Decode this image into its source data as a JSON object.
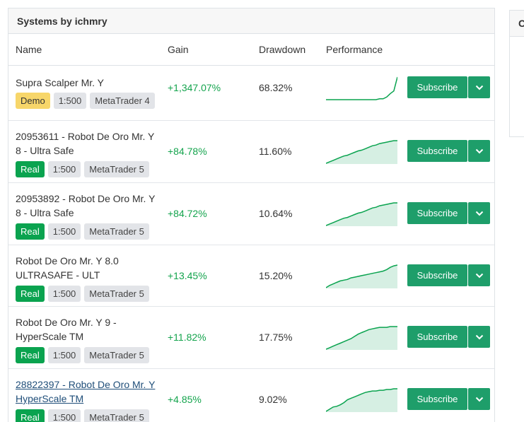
{
  "card": {
    "title": "Systems by ichmry"
  },
  "columns": {
    "name": "Name",
    "gain": "Gain",
    "drawdown": "Drawdown",
    "performance": "Performance"
  },
  "side_card": {
    "title": "C"
  },
  "buttons": {
    "subscribe": "Subscribe"
  },
  "icons": {
    "dropdown": "chevron-down-icon"
  },
  "colors": {
    "accent": "#1e9e6a",
    "gain": "#14a44d",
    "real_badge": "#0aa34f",
    "demo_badge": "#f7d66a",
    "sparkline": "#0aa34f",
    "sparkline_fill": "#d6efe3"
  },
  "systems": [
    {
      "name": "Supra Scalper Mr. Y",
      "account_type": "Demo",
      "leverage": "1:500",
      "platform": "MetaTrader 4",
      "gain": "+1,347.07%",
      "drawdown": "68.32%",
      "perf": [
        2,
        2,
        2,
        2,
        2,
        2,
        2,
        2,
        2,
        2,
        2,
        2,
        2,
        2,
        2,
        3,
        3,
        5,
        9,
        12,
        28
      ],
      "filled": false
    },
    {
      "name": "20953611 - Robot De Oro Mr. Y 8 - Ultra Safe",
      "account_type": "Real",
      "leverage": "1:500",
      "platform": "MetaTrader 5",
      "gain": "+84.78%",
      "drawdown": "11.60%",
      "perf": [
        0,
        2,
        4,
        6,
        8,
        10,
        11,
        13,
        15,
        17,
        18,
        20,
        22,
        24,
        25,
        27,
        28,
        29,
        30,
        31,
        31
      ],
      "filled": true
    },
    {
      "name": "20953892 - Robot De Oro Mr. Y 8 - Ultra Safe",
      "account_type": "Real",
      "leverage": "1:500",
      "platform": "MetaTrader 5",
      "gain": "+84.72%",
      "drawdown": "10.64%",
      "perf": [
        0,
        2,
        4,
        6,
        8,
        10,
        11,
        13,
        15,
        17,
        18,
        20,
        22,
        24,
        25,
        27,
        28,
        29,
        30,
        31,
        31
      ],
      "filled": true
    },
    {
      "name": "Robot De Oro Mr. Y 8.0 ULTRASAFE - ULT",
      "account_type": "Real",
      "leverage": "1:500",
      "platform": "MetaTrader 5",
      "gain": "+13.45%",
      "drawdown": "15.20%",
      "perf": [
        0,
        3,
        5,
        7,
        9,
        10,
        11,
        13,
        14,
        15,
        16,
        17,
        18,
        19,
        20,
        21,
        22,
        24,
        27,
        29,
        30
      ],
      "filled": true
    },
    {
      "name": "Robot De Oro Mr. Y 9 - HyperScale TM",
      "account_type": "Real",
      "leverage": "1:500",
      "platform": "MetaTrader 5",
      "gain": "+11.82%",
      "drawdown": "17.75%",
      "perf": [
        0,
        2,
        4,
        6,
        8,
        10,
        12,
        14,
        17,
        20,
        22,
        24,
        26,
        27,
        28,
        29,
        29,
        29,
        30,
        30,
        30
      ],
      "filled": true
    },
    {
      "name": "28822397 - Robot De Oro Mr. Y HyperScale TM",
      "account_type": "Real",
      "leverage": "1:500",
      "platform": "MetaTrader 5",
      "gain": "+4.85%",
      "drawdown": "9.02%",
      "perf": [
        0,
        3,
        6,
        7,
        9,
        12,
        16,
        18,
        20,
        22,
        24,
        26,
        27,
        28,
        28,
        29,
        29,
        30,
        30,
        31,
        31
      ],
      "filled": true,
      "is_link": true
    }
  ]
}
